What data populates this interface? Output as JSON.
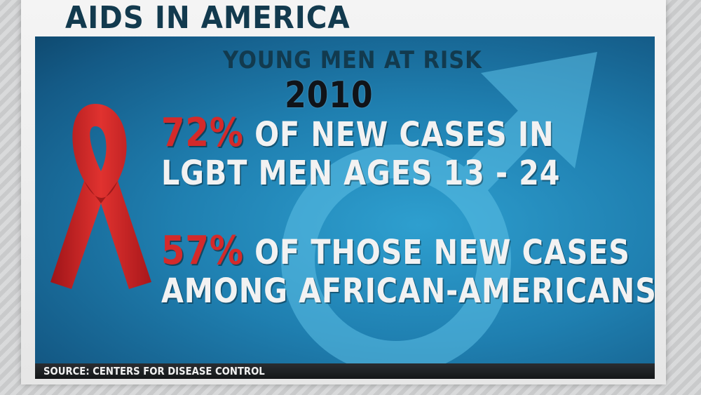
{
  "header": {
    "title": "AIDS IN AMERICA"
  },
  "graphic": {
    "subtitle": "YOUNG MEN AT RISK",
    "year": "2010",
    "stats": [
      {
        "percent": "72%",
        "line1_rest": " OF NEW CASES IN",
        "line2": "LGBT MEN AGES 13 - 24"
      },
      {
        "percent": "57%",
        "line1_rest": " OF THOSE NEW CASES",
        "line2": "AMONG AFRICAN-AMERICANS"
      }
    ],
    "icons": {
      "ribbon": "awareness-ribbon-icon",
      "background_symbol": "male-symbol-icon"
    },
    "colors": {
      "header_text": "#123a4e",
      "percent_red": "#d42a2a",
      "panel_blue": "#1f7fb0",
      "ribbon_red": "#d8262b"
    }
  },
  "source": {
    "text": "SOURCE: CENTERS FOR DISEASE CONTROL"
  }
}
